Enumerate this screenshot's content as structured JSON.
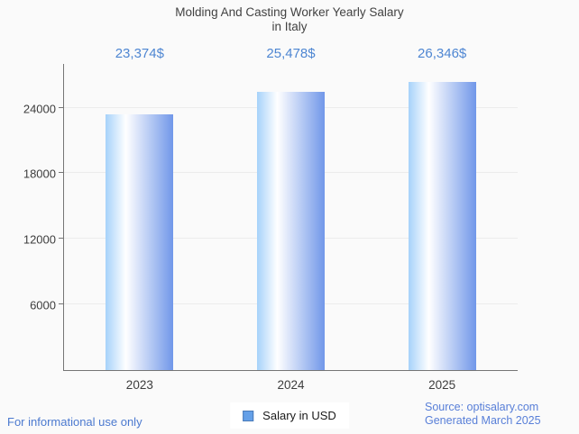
{
  "title": {
    "line1": "Molding And Casting Worker Yearly Salary",
    "line2": "in Italy"
  },
  "chart_data": {
    "type": "bar",
    "title": "Molding And Casting Worker Yearly Salary in Italy",
    "categories": [
      "2023",
      "2024",
      "2025"
    ],
    "values": [
      23374,
      25478,
      26346
    ],
    "value_labels": [
      "23,374$",
      "25,478$",
      "26,346$"
    ],
    "xlabel": "",
    "ylabel": "",
    "ylim": [
      0,
      28000
    ],
    "yticks": [
      6000,
      12000,
      18000,
      24000
    ],
    "grid": true,
    "legend_position": "bottom",
    "series_name": "Salary in USD"
  },
  "legend": {
    "label": "Salary in USD"
  },
  "footer": {
    "left": "For informational use only",
    "source_line1": "Source: optisalary.com",
    "source_line2": "Generated March 2025"
  },
  "colors": {
    "background": "#fafafa",
    "title": "#424242",
    "axis": "#757575",
    "gridline": "#ececec",
    "tick_label": "#3d3d3d",
    "value_label": "#4e86d2",
    "bar_gradient_left": "#a6d2fa",
    "bar_gradient_mid": "#ffffff",
    "bar_gradient_right": "#7197e9",
    "legend_swatch_fill": "#64a0e8",
    "legend_swatch_border": "#4a7ab8",
    "legend_text": "#1a1a1a",
    "footer_left_text": "#4b79cf",
    "footer_right_text": "#587fd8"
  }
}
